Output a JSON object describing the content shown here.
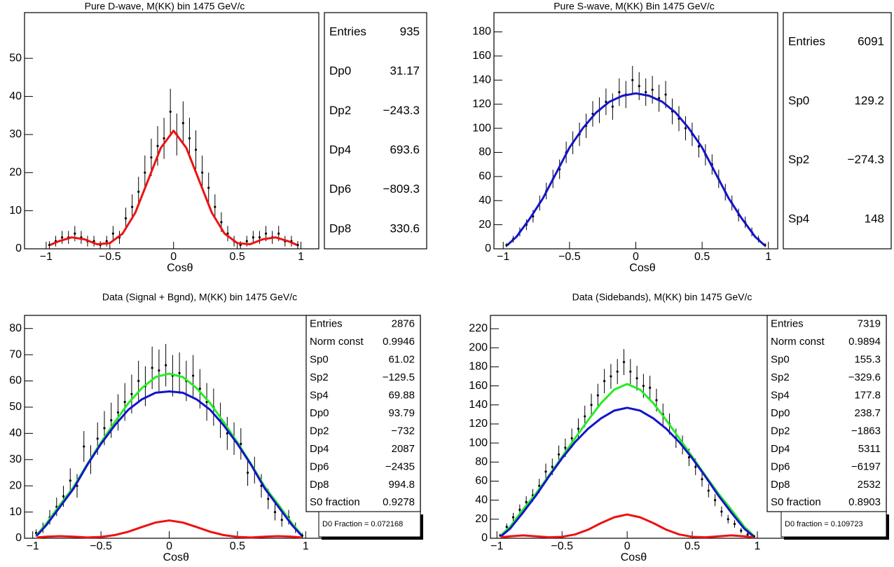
{
  "chart_data": [
    {
      "type": "errorbar",
      "title": "Pure D-wave, M(KK) bin 1475 GeV/c",
      "x_label": "Cosθ",
      "xlim": [
        -1.17,
        1.14
      ],
      "ylim": [
        0,
        62
      ],
      "xticks": [
        {
          "value": -1,
          "label": "−1"
        },
        {
          "value": -0.5,
          "label": "−0.5"
        },
        0,
        0.5,
        1
      ],
      "yticks": [
        0,
        10,
        20,
        30,
        40,
        50
      ],
      "points": {
        "color": "#000000",
        "x": [
          -0.975,
          -0.925,
          -0.875,
          -0.825,
          -0.775,
          -0.725,
          -0.675,
          -0.625,
          -0.575,
          -0.525,
          -0.475,
          -0.425,
          -0.375,
          -0.325,
          -0.275,
          -0.225,
          -0.175,
          -0.125,
          -0.075,
          -0.025,
          0.025,
          0.075,
          0.125,
          0.175,
          0.225,
          0.275,
          0.325,
          0.375,
          0.425,
          0.475,
          0.525,
          0.575,
          0.625,
          0.675,
          0.725,
          0.775,
          0.825,
          0.875,
          0.925,
          0.975
        ],
        "values": [
          1,
          2,
          3,
          3,
          4,
          3,
          2,
          2,
          1,
          2,
          4,
          3,
          8,
          11,
          15,
          20,
          24,
          27,
          29,
          36,
          30,
          33,
          29,
          26,
          20,
          16,
          11,
          7,
          4,
          2,
          1,
          2,
          3,
          3,
          4,
          3,
          4,
          2,
          2,
          1
        ],
        "errors": [
          1,
          1.4,
          1.7,
          1.7,
          2,
          1.7,
          1.4,
          1.4,
          1,
          1.4,
          2,
          1.7,
          2.8,
          3.3,
          3.9,
          4.5,
          4.9,
          5.2,
          5.4,
          6,
          5.5,
          5.7,
          5.4,
          5.1,
          4.5,
          4,
          3.3,
          2.6,
          2,
          1.4,
          1,
          1.4,
          1.7,
          1.7,
          2,
          1.7,
          2,
          1.4,
          1.4,
          1
        ]
      },
      "curves": [
        {
          "color": "#ee1111",
          "x": [
            -0.97,
            -0.9,
            -0.8,
            -0.7,
            -0.6,
            -0.5,
            -0.4,
            -0.3,
            -0.2,
            -0.1,
            0,
            0.1,
            0.2,
            0.3,
            0.4,
            0.5,
            0.6,
            0.7,
            0.8,
            0.9,
            0.97
          ],
          "values": [
            1,
            2,
            3,
            2.5,
            1.2,
            1.5,
            4,
            9.5,
            18,
            26.5,
            31,
            26.5,
            18,
            9.5,
            4,
            1.5,
            1.2,
            2.5,
            3,
            2,
            1
          ]
        }
      ],
      "stats": [
        [
          "Entries",
          "935"
        ],
        [
          "Dp0",
          "31.17"
        ],
        [
          "Dp2",
          "−243.3"
        ],
        [
          "Dp4",
          "693.6"
        ],
        [
          "Dp6",
          "−809.3"
        ],
        [
          "Dp8",
          "330.6"
        ]
      ]
    },
    {
      "type": "errorbar",
      "title": "Pure S-wave, M(KK) Bin 1475 GeV/c",
      "x_label": "Cosθ",
      "xlim": [
        -1.07,
        1.07
      ],
      "ylim": [
        0,
        196
      ],
      "xticks": [
        {
          "value": -1,
          "label": "−1"
        },
        {
          "value": -0.5,
          "label": "−0.5"
        },
        0,
        0.5,
        1
      ],
      "yticks": [
        0,
        20,
        40,
        60,
        80,
        100,
        120,
        140,
        160,
        180
      ],
      "points": {
        "color": "#000000",
        "x": [
          -0.975,
          -0.925,
          -0.875,
          -0.825,
          -0.775,
          -0.725,
          -0.675,
          -0.625,
          -0.575,
          -0.525,
          -0.475,
          -0.425,
          -0.375,
          -0.325,
          -0.275,
          -0.225,
          -0.175,
          -0.125,
          -0.075,
          -0.025,
          0.025,
          0.075,
          0.125,
          0.175,
          0.225,
          0.275,
          0.325,
          0.375,
          0.425,
          0.475,
          0.525,
          0.575,
          0.625,
          0.675,
          0.725,
          0.775,
          0.825,
          0.875,
          0.925,
          0.975
        ],
        "values": [
          3,
          8,
          14,
          20,
          27,
          38,
          48,
          58,
          66,
          80,
          88,
          95,
          102,
          112,
          115,
          122,
          118,
          130,
          128,
          140,
          135,
          130,
          132,
          125,
          128,
          114,
          108,
          100,
          95,
          85,
          78,
          70,
          58,
          47,
          38,
          28,
          22,
          14,
          8,
          3
        ],
        "errors": [
          1.7,
          2.8,
          3.7,
          4.5,
          5.2,
          6.2,
          6.9,
          7.6,
          8.1,
          8.9,
          9.4,
          9.7,
          10.1,
          10.6,
          10.7,
          11,
          10.9,
          11.4,
          11.3,
          11.8,
          11.6,
          11.4,
          11.5,
          11.2,
          11.3,
          10.7,
          10.4,
          10,
          9.7,
          9.2,
          8.8,
          8.4,
          7.6,
          6.9,
          6.2,
          5.3,
          4.7,
          3.7,
          2.8,
          1.7
        ]
      },
      "curves": [
        {
          "color": "#1414cc",
          "x": [
            -0.97,
            -0.9,
            -0.8,
            -0.7,
            -0.6,
            -0.5,
            -0.4,
            -0.3,
            -0.2,
            -0.1,
            0,
            0.1,
            0.2,
            0.3,
            0.4,
            0.5,
            0.6,
            0.7,
            0.8,
            0.9,
            0.97
          ],
          "values": [
            3,
            10,
            25,
            42,
            63,
            84,
            100,
            113,
            122,
            127,
            129,
            127,
            122,
            113,
            100,
            84,
            63,
            42,
            25,
            10,
            3
          ]
        }
      ],
      "stats": [
        [
          "Entries",
          "6091"
        ],
        [
          "Sp0",
          "129.2"
        ],
        [
          "Sp2",
          "−274.3"
        ],
        [
          "Sp4",
          "148"
        ]
      ]
    },
    {
      "type": "errorbar",
      "title": "Data (Signal + Bgnd), M(KK) bin 1475 GeV/c",
      "x_label": "Cosθ",
      "xlim": [
        -1.06,
        1.84
      ],
      "ylim": [
        0,
        85
      ],
      "xticks": [
        {
          "value": -1,
          "label": "−1"
        },
        {
          "value": -0.5,
          "label": "−0.5"
        },
        0,
        0.5,
        1
      ],
      "yticks": [
        0,
        10,
        20,
        30,
        40,
        50,
        60,
        70,
        80
      ],
      "points": {
        "color": "#000000",
        "x": [
          -0.975,
          -0.925,
          -0.875,
          -0.825,
          -0.775,
          -0.725,
          -0.675,
          -0.625,
          -0.575,
          -0.525,
          -0.475,
          -0.425,
          -0.375,
          -0.325,
          -0.275,
          -0.225,
          -0.175,
          -0.125,
          -0.075,
          -0.025,
          0.025,
          0.075,
          0.125,
          0.175,
          0.225,
          0.275,
          0.325,
          0.375,
          0.425,
          0.475,
          0.525,
          0.575,
          0.625,
          0.675,
          0.725,
          0.775,
          0.825,
          0.875,
          0.925,
          0.975
        ],
        "values": [
          2,
          4,
          8,
          12,
          16,
          22,
          20,
          35,
          30,
          38,
          42,
          45,
          48,
          52,
          55,
          60,
          58,
          65,
          64,
          66,
          62,
          63,
          60,
          62,
          57,
          52,
          50,
          45,
          40,
          38,
          36,
          25,
          26,
          20,
          15,
          10,
          7,
          8,
          4,
          1
        ],
        "errors": [
          1.4,
          2,
          2.8,
          3.5,
          4,
          4.7,
          4.5,
          5.9,
          5.5,
          6.2,
          6.5,
          6.7,
          6.9,
          7.2,
          7.4,
          7.7,
          7.6,
          8.1,
          8,
          8.1,
          7.9,
          7.9,
          7.7,
          7.9,
          7.5,
          7.2,
          7.1,
          6.7,
          6.3,
          6.2,
          6,
          5,
          5.1,
          4.5,
          3.9,
          3.2,
          2.6,
          2.8,
          2,
          1
        ]
      },
      "curves": [
        {
          "color": "#22ee22",
          "x": [
            -0.97,
            -0.9,
            -0.8,
            -0.7,
            -0.6,
            -0.5,
            -0.4,
            -0.3,
            -0.2,
            -0.1,
            0,
            0.1,
            0.2,
            0.3,
            0.4,
            0.5,
            0.6,
            0.7,
            0.8,
            0.9,
            0.97
          ],
          "values": [
            1.3,
            5.6,
            12.8,
            19.6,
            28.3,
            36.5,
            44.2,
            51.5,
            57.3,
            61.5,
            62.8,
            61.5,
            57.3,
            51.5,
            44.2,
            36.5,
            28.3,
            19.6,
            12.8,
            5.6,
            1.3
          ]
        },
        {
          "color": "#1414cc",
          "x": [
            -0.97,
            -0.9,
            -0.8,
            -0.7,
            -0.6,
            -0.5,
            -0.4,
            -0.3,
            -0.2,
            -0.1,
            0,
            0.1,
            0.2,
            0.3,
            0.4,
            0.5,
            0.6,
            0.7,
            0.8,
            0.9,
            0.97
          ],
          "values": [
            1,
            5,
            12,
            19,
            28,
            36,
            43,
            49,
            53,
            55.5,
            56,
            55.5,
            53,
            49,
            43,
            36,
            28,
            19,
            12,
            5,
            1
          ]
        },
        {
          "color": "#ee1111",
          "x": [
            -0.97,
            -0.9,
            -0.8,
            -0.7,
            -0.6,
            -0.5,
            -0.4,
            -0.3,
            -0.2,
            -0.1,
            0,
            0.1,
            0.2,
            0.3,
            0.4,
            0.5,
            0.6,
            0.7,
            0.8,
            0.9,
            0.97
          ],
          "values": [
            0.3,
            0.6,
            0.8,
            0.6,
            0.3,
            0.5,
            1.2,
            2.5,
            4.3,
            6,
            6.8,
            6,
            4.3,
            2.5,
            1.2,
            0.5,
            0.3,
            0.6,
            0.8,
            0.6,
            0.3
          ]
        }
      ],
      "stats": [
        [
          "Entries",
          "2876"
        ],
        [
          "Norm const",
          "0.9946"
        ],
        [
          "Sp0",
          "61.02"
        ],
        [
          "Sp2",
          "−129.5"
        ],
        [
          "Sp4",
          "69.88"
        ],
        [
          "Dp0",
          "93.79"
        ],
        [
          "Dp2",
          "−732"
        ],
        [
          "Dp4",
          "2087"
        ],
        [
          "Dp6",
          "−2435"
        ],
        [
          "Dp8",
          "994.8"
        ],
        [
          "S0 fraction",
          "0.9278"
        ]
      ],
      "annotation": "D0 Fraction = 0.072168"
    },
    {
      "type": "errorbar",
      "title": "Data (Sidebands), M(KK) bin 1475 GeV/c",
      "x_label": "Cosθ",
      "xlim": [
        -1.05,
        1.99
      ],
      "ylim": [
        0,
        234
      ],
      "xticks": [
        {
          "value": -1,
          "label": "−1"
        },
        {
          "value": -0.5,
          "label": "−0.5"
        },
        0,
        0.5,
        1
      ],
      "yticks": [
        0,
        20,
        40,
        60,
        80,
        100,
        120,
        140,
        160,
        180,
        200,
        220
      ],
      "points": {
        "color": "#000000",
        "x": [
          -0.975,
          -0.925,
          -0.875,
          -0.825,
          -0.775,
          -0.725,
          -0.675,
          -0.625,
          -0.575,
          -0.525,
          -0.475,
          -0.425,
          -0.375,
          -0.325,
          -0.275,
          -0.225,
          -0.175,
          -0.125,
          -0.075,
          -0.025,
          0.025,
          0.075,
          0.125,
          0.175,
          0.225,
          0.275,
          0.325,
          0.375,
          0.425,
          0.475,
          0.525,
          0.575,
          0.625,
          0.675,
          0.725,
          0.775,
          0.825,
          0.875,
          0.925,
          0.975
        ],
        "values": [
          3,
          12,
          22,
          30,
          38,
          45,
          55,
          70,
          75,
          88,
          95,
          105,
          115,
          128,
          140,
          150,
          165,
          170,
          175,
          185,
          175,
          168,
          160,
          158,
          145,
          130,
          120,
          105,
          98,
          85,
          75,
          62,
          50,
          40,
          28,
          20,
          15,
          8,
          4,
          2
        ],
        "errors": [
          1.7,
          3.5,
          4.7,
          5.5,
          6.2,
          6.7,
          7.4,
          8.4,
          8.7,
          9.4,
          9.7,
          10.2,
          10.7,
          11.3,
          11.8,
          12.2,
          12.8,
          13,
          13.2,
          13.6,
          13.2,
          13,
          12.6,
          12.6,
          12,
          11.4,
          11,
          10.2,
          9.9,
          9.2,
          8.7,
          7.9,
          7.1,
          6.3,
          5.3,
          4.5,
          3.9,
          2.8,
          2,
          1.4
        ]
      },
      "curves": [
        {
          "color": "#22ee22",
          "x": [
            -0.97,
            -0.9,
            -0.8,
            -0.7,
            -0.6,
            -0.5,
            -0.4,
            -0.3,
            -0.2,
            -0.1,
            0,
            0.1,
            0.2,
            0.3,
            0.4,
            0.5,
            0.6,
            0.7,
            0.8,
            0.9,
            0.97
          ],
          "values": [
            3,
            12,
            30,
            47,
            66,
            85.5,
            105,
            124,
            142,
            156,
            162,
            156,
            142,
            124,
            105,
            85.5,
            66,
            47,
            30,
            12,
            3
          ]
        },
        {
          "color": "#1414cc",
          "x": [
            -0.97,
            -0.9,
            -0.8,
            -0.7,
            -0.6,
            -0.5,
            -0.4,
            -0.3,
            -0.2,
            -0.1,
            0,
            0.1,
            0.2,
            0.3,
            0.4,
            0.5,
            0.6,
            0.7,
            0.8,
            0.9,
            0.97
          ],
          "values": [
            2,
            10,
            27,
            45,
            65,
            84,
            101,
            115,
            126,
            134,
            137,
            134,
            126,
            115,
            101,
            84,
            65,
            45,
            27,
            10,
            2
          ]
        },
        {
          "color": "#ee1111",
          "x": [
            -0.97,
            -0.9,
            -0.8,
            -0.7,
            -0.6,
            -0.5,
            -0.4,
            -0.3,
            -0.2,
            -0.1,
            0,
            0.1,
            0.2,
            0.3,
            0.4,
            0.5,
            0.6,
            0.7,
            0.8,
            0.9,
            0.97
          ],
          "values": [
            1,
            2,
            3,
            2,
            1,
            1.5,
            4,
            9,
            16,
            22,
            25,
            22,
            16,
            9,
            4,
            1.5,
            1,
            2,
            3,
            2,
            1
          ]
        }
      ],
      "stats": [
        [
          "Entries",
          "7319"
        ],
        [
          "Norm const",
          "0.9894"
        ],
        [
          "Sp0",
          "155.3"
        ],
        [
          "Sp2",
          "−329.6"
        ],
        [
          "Sp4",
          "177.8"
        ],
        [
          "Dp0",
          "238.7"
        ],
        [
          "Dp2",
          "−1863"
        ],
        [
          "Dp4",
          "5311"
        ],
        [
          "Dp6",
          "−6197"
        ],
        [
          "Dp8",
          "2532"
        ],
        [
          "S0 fraction",
          "0.8903"
        ]
      ],
      "annotation": "D0 fraction = 0.109723"
    }
  ]
}
